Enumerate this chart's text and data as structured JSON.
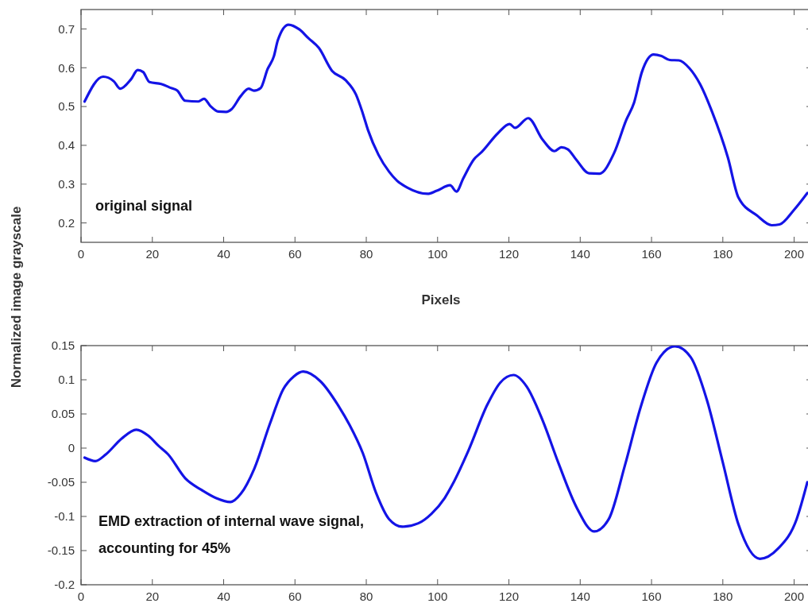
{
  "chart_data": [
    {
      "type": "line",
      "xlabel": "Pixels",
      "ylabel": "Normalized image grayscale",
      "annotations": [
        "original signal"
      ],
      "xlim": [
        0,
        205
      ],
      "xticks": [
        0,
        20,
        40,
        60,
        80,
        100,
        120,
        140,
        160,
        180,
        200
      ],
      "ylim": [
        0.15,
        0.75
      ],
      "yticks": [
        0.2,
        0.3,
        0.4,
        0.5,
        0.6,
        0.7
      ],
      "series": [
        {
          "color": "#1414e6",
          "x": [
            1,
            6.2,
            9.2,
            11,
            14,
            15.9,
            17.4,
            19.2,
            22.5,
            25.2,
            27,
            29.2,
            32.9,
            34.5,
            36.3,
            38.5,
            40.7,
            42.2,
            44.8,
            47,
            48.5,
            50.4,
            52.3,
            54.1,
            55.2,
            58.2,
            61.2,
            63.8,
            66.7,
            70.4,
            74.2,
            77.1,
            79,
            80.5,
            83.4,
            86.4,
            88.6,
            91.5,
            97.2,
            99.8,
            103.5,
            105.3,
            107.2,
            110.2,
            112.4,
            116.9,
            120.2,
            121.7,
            125.4,
            129.5,
            132.8,
            134.7,
            136.5,
            138.8,
            142.5,
            145.4,
            149.5,
            152.9,
            155.1,
            157.3,
            160.6,
            162.8,
            165.1,
            167.7,
            170.6,
            173.6,
            177,
            181.4,
            184.4,
            189.6,
            193.7,
            195.9,
            200,
            203.7
          ],
          "values": [
            0.513,
            0.577,
            0.565,
            0.546,
            0.57,
            0.594,
            0.589,
            0.563,
            0.558,
            0.548,
            0.541,
            0.515,
            0.513,
            0.52,
            0.501,
            0.487,
            0.486,
            0.493,
            0.527,
            0.546,
            0.541,
            0.548,
            0.596,
            0.63,
            0.671,
            0.711,
            0.699,
            0.676,
            0.651,
            0.592,
            0.568,
            0.531,
            0.483,
            0.439,
            0.376,
            0.332,
            0.309,
            0.291,
            0.275,
            0.283,
            0.297,
            0.281,
            0.315,
            0.364,
            0.383,
            0.431,
            0.455,
            0.445,
            0.47,
            0.414,
            0.385,
            0.395,
            0.39,
            0.364,
            0.328,
            0.327,
            0.38,
            0.465,
            0.51,
            0.589,
            0.634,
            0.63,
            0.62,
            0.619,
            0.599,
            0.558,
            0.486,
            0.369,
            0.265,
            0.219,
            0.194,
            0.196,
            0.234,
            0.277
          ]
        }
      ]
    },
    {
      "type": "line",
      "annotations": [
        "EMD extraction of internal wave signal,\naccounting for 45%"
      ],
      "xlim": [
        0,
        205
      ],
      "xticks": [
        0,
        20,
        40,
        60,
        80,
        100,
        120,
        140,
        160,
        180,
        200
      ],
      "ylim": [
        -0.2,
        0.15
      ],
      "yticks": [
        -0.2,
        -0.15,
        -0.1,
        -0.05,
        0,
        0.05,
        0.1,
        0.15
      ],
      "series": [
        {
          "color": "#1414e6",
          "x": [
            1,
            4,
            7,
            11.4,
            15.5,
            18.9,
            21.8,
            24.4,
            29.2,
            33.7,
            37.8,
            41.9,
            44.8,
            48.6,
            53,
            56.7,
            59.7,
            62.3,
            67.1,
            72.3,
            75.3,
            79,
            82.7,
            86.4,
            90.1,
            94.6,
            98.3,
            102,
            104.2,
            108.7,
            113.9,
            117.6,
            121.3,
            125,
            129.5,
            133.9,
            139.1,
            143.9,
            148,
            152.5,
            156.9,
            161.4,
            166.6,
            171,
            175.5,
            179.9,
            184.4,
            190.4,
            195.5,
            200.7,
            203.7
          ],
          "values": [
            -0.014,
            -0.019,
            -0.009,
            0.014,
            0.027,
            0.018,
            0.003,
            -0.009,
            -0.044,
            -0.061,
            -0.073,
            -0.079,
            -0.067,
            -0.03,
            0.036,
            0.086,
            0.105,
            0.112,
            0.098,
            0.061,
            0.034,
            -0.007,
            -0.065,
            -0.104,
            -0.115,
            -0.11,
            -0.096,
            -0.073,
            -0.053,
            -0.003,
            0.063,
            0.096,
            0.107,
            0.09,
            0.04,
            -0.022,
            -0.088,
            -0.122,
            -0.104,
            -0.026,
            0.059,
            0.125,
            0.149,
            0.133,
            0.071,
            -0.019,
            -0.112,
            -0.162,
            -0.147,
            -0.104,
            -0.05
          ]
        }
      ]
    }
  ]
}
